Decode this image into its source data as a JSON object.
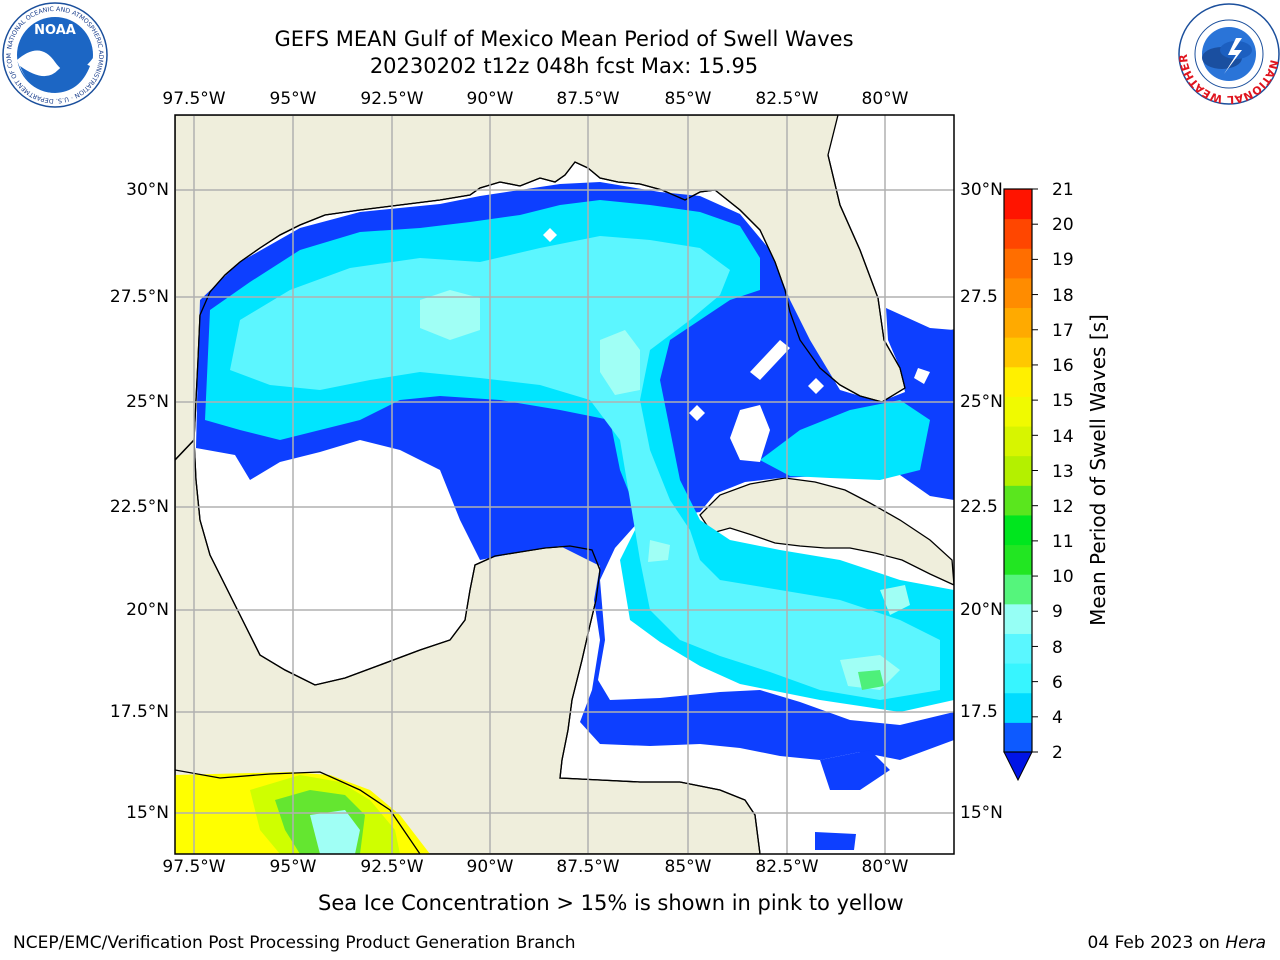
{
  "header": {
    "title_line1": "GEFS MEAN Gulf of Mexico Mean Period of Swell Waves",
    "title_line2": "20230202 t12z 048h fcst   Max: 15.95"
  },
  "map": {
    "lon_ticks": [
      "97.5°W",
      "95°W",
      "92.5°W",
      "90°W",
      "87.5°W",
      "85°W",
      "82.5°W",
      "80°W"
    ],
    "lat_ticks_left": [
      "30°N",
      "27.5°N",
      "25°N",
      "22.5°N",
      "20°N",
      "17.5°N",
      "15°N"
    ],
    "lat_ticks_right": [
      "30°N",
      "27.5",
      "25°N",
      "22.5",
      "20°N",
      "17.5",
      "15°N"
    ],
    "land_color": "#efeedc",
    "ocean_undefined_color": "#ffffff"
  },
  "colorbar": {
    "label": "Mean Period of Swell Waves [s]",
    "ticks": [
      "21",
      "20",
      "19",
      "18",
      "17",
      "16",
      "15",
      "14",
      "13",
      "12",
      "11",
      "10",
      "9",
      "8",
      "6",
      "4",
      "2"
    ],
    "colors": [
      "#0d5aff",
      "#00dcff",
      "#37f5ff",
      "#5af7ff",
      "#96fff5",
      "#55f57c",
      "#22e622",
      "#00e61e",
      "#5ae61e",
      "#b4f000",
      "#d7f500",
      "#f0fa00",
      "#fff000",
      "#ffc800",
      "#ffaa00",
      "#ff8c00",
      "#ff6e00",
      "#ff4600",
      "#ff1400"
    ],
    "extend_color": "#0014e6"
  },
  "footer": {
    "note": "Sea Ice Concentration > 15% is shown in pink to yellow",
    "credit": "NCEP/EMC/Verification Post Processing Product Generation Branch",
    "date": "04 Feb 2023 on",
    "host": "Hera"
  },
  "logos": {
    "noaa_text": "NOAA",
    "noaa_ring": "NATIONAL OCEANIC AND ATMOSPHERIC ADMINISTRATION · U.S. DEPARTMENT OF COMMERCE",
    "nws_ring": "NATIONAL WEATHER SERVICE"
  }
}
